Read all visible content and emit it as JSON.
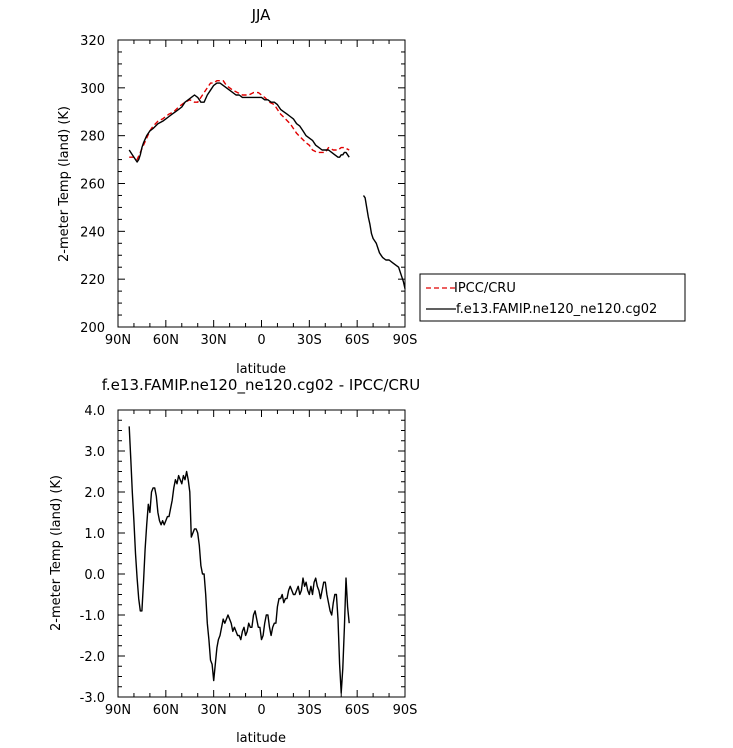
{
  "chart_data": [
    {
      "type": "line",
      "title": "JJA",
      "xlabel": "latitude",
      "ylabel": "2-meter Temp (land) (K)",
      "xlim": [
        90,
        -90
      ],
      "ylim": [
        200,
        320
      ],
      "xticks": [
        90,
        60,
        30,
        0,
        -30,
        -60,
        -90
      ],
      "xtick_labels": [
        "90N",
        "60N",
        "30N",
        "0",
        "30S",
        "60S",
        "90S"
      ],
      "yticks": [
        200,
        220,
        240,
        260,
        280,
        300,
        320
      ],
      "ytick_labels": [
        "200",
        "220",
        "240",
        "260",
        "280",
        "300",
        "320"
      ],
      "legend_position": "right",
      "series": [
        {
          "name": "IPCC/CRU",
          "color": "#e00000",
          "dash": true,
          "x": [
            83,
            80,
            78,
            76,
            74,
            72,
            70,
            68,
            65,
            62,
            60,
            58,
            55,
            52,
            50,
            48,
            45,
            42,
            40,
            38,
            36,
            34,
            32,
            30,
            28,
            26,
            24,
            22,
            20,
            18,
            15,
            12,
            10,
            8,
            5,
            2,
            0,
            -2,
            -5,
            -8,
            -10,
            -12,
            -15,
            -18,
            -20,
            -22,
            -25,
            -28,
            -30,
            -32,
            -35,
            -38,
            -40,
            -42,
            -45,
            -48,
            -50,
            -52,
            -55
          ],
          "y": [
            271,
            271,
            270,
            273,
            276,
            279,
            282,
            284,
            286,
            287,
            288,
            289,
            290,
            292,
            293,
            294,
            295,
            294,
            294,
            296,
            298,
            300,
            302,
            302,
            303,
            303,
            303,
            301,
            300,
            299,
            298,
            297,
            297,
            297,
            298,
            298,
            297,
            296,
            294,
            293,
            291,
            289,
            287,
            285,
            283,
            281,
            279,
            277,
            276,
            274,
            273,
            273,
            273,
            275,
            274,
            274,
            275,
            275,
            274
          ]
        },
        {
          "name": "f.e13.FAMIP.ne120_ne120.cg02",
          "color": "#000000",
          "dash": false,
          "x": [
            83,
            81,
            79,
            78,
            77,
            76,
            75,
            74,
            72,
            70,
            68,
            65,
            62,
            60,
            58,
            56,
            54,
            52,
            50,
            48,
            46,
            44,
            42,
            40,
            38,
            36,
            34,
            32,
            30,
            28,
            26,
            24,
            22,
            20,
            18,
            16,
            14,
            12,
            10,
            8,
            6,
            4,
            2,
            0,
            -2,
            -4,
            -6,
            -8,
            -10,
            -12,
            -14,
            -16,
            -18,
            -20,
            -22,
            -24,
            -26,
            -28,
            -30,
            -32,
            -34,
            -36,
            -38,
            -40,
            -42,
            -44,
            -46,
            -48,
            -49,
            -50,
            -51,
            -52,
            -53,
            -54,
            -55
          ],
          "y": [
            274,
            272,
            270,
            269,
            270,
            272,
            275,
            277,
            280,
            282,
            283,
            285,
            286,
            287,
            288,
            289,
            290,
            291,
            292,
            294,
            295,
            296,
            297,
            296,
            294,
            294,
            297,
            299,
            301,
            302,
            302,
            301,
            300,
            299,
            298,
            297,
            297,
            296,
            296,
            296,
            296,
            296,
            296,
            296,
            295,
            295,
            294,
            294,
            293,
            291,
            290,
            289,
            288,
            287,
            285,
            284,
            282,
            280,
            279,
            278,
            276,
            275,
            274,
            274,
            274,
            273,
            272,
            271,
            271,
            272,
            272,
            273,
            273,
            272,
            271
          ]
        },
        {
          "name": "f.e13.FAMIP.ne120_ne120.cg02",
          "color": "#000000",
          "dash": false,
          "x": [
            -64,
            -65,
            -66,
            -67,
            -68,
            -69,
            -70,
            -71,
            -72,
            -73,
            -74,
            -75,
            -76,
            -78,
            -80,
            -82,
            -84,
            -86,
            -87,
            -88,
            -89,
            -90
          ],
          "y": [
            255,
            254,
            250,
            246,
            243,
            239,
            237,
            236,
            235,
            233,
            231,
            230,
            229,
            228,
            228,
            227,
            226,
            225,
            223,
            221,
            219,
            216
          ]
        }
      ]
    },
    {
      "type": "line",
      "title": "f.e13.FAMIP.ne120_ne120.cg02 - IPCC/CRU",
      "xlabel": "latitude",
      "ylabel": "2-meter Temp (land) (K)",
      "xlim": [
        90,
        -90
      ],
      "ylim": [
        -3,
        4
      ],
      "xticks": [
        90,
        60,
        30,
        0,
        -30,
        -60,
        -90
      ],
      "xtick_labels": [
        "90N",
        "60N",
        "30N",
        "0",
        "30S",
        "60S",
        "90S"
      ],
      "yticks": [
        -3,
        -2,
        -1,
        0,
        1,
        2,
        3,
        4
      ],
      "ytick_labels": [
        "-3.0",
        "-2.0",
        "-1.0",
        "0.0",
        "1.0",
        "2.0",
        "3.0",
        "4.0"
      ],
      "series": [
        {
          "color": "#000000",
          "dash": false,
          "x": [
            83,
            82,
            81,
            80,
            79,
            78,
            77,
            76,
            75,
            74,
            73,
            72,
            71,
            70,
            69,
            68,
            67,
            66,
            65,
            64,
            63,
            62,
            61,
            60,
            59,
            58,
            57,
            56,
            55,
            54,
            53,
            52,
            51,
            50,
            49,
            48,
            47,
            46,
            45,
            44,
            43,
            42,
            41,
            40,
            39,
            38,
            37,
            36,
            35,
            34,
            33,
            32,
            31,
            30,
            29,
            28,
            27,
            26,
            25,
            24,
            23,
            22,
            21,
            20,
            19,
            18,
            17,
            16,
            15,
            14,
            13,
            12,
            11,
            10,
            9,
            8,
            7,
            6,
            5,
            4,
            3,
            2,
            1,
            0,
            -1,
            -2,
            -3,
            -4,
            -5,
            -6,
            -7,
            -8,
            -9,
            -10,
            -11,
            -12,
            -13,
            -14,
            -15,
            -16,
            -17,
            -18,
            -19,
            -20,
            -21,
            -22,
            -23,
            -24,
            -25,
            -26,
            -27,
            -28,
            -29,
            -30,
            -31,
            -32,
            -33,
            -34,
            -35,
            -36,
            -37,
            -38,
            -39,
            -40,
            -41,
            -42,
            -43,
            -44,
            -45,
            -46,
            -47,
            -48,
            -49,
            -50,
            -51,
            -52,
            -53,
            -54,
            -55
          ],
          "y": [
            3.6,
            2.8,
            2.0,
            1.3,
            0.5,
            -0.1,
            -0.6,
            -0.9,
            -0.9,
            -0.2,
            0.6,
            1.2,
            1.7,
            1.5,
            2.0,
            2.1,
            2.1,
            1.9,
            1.5,
            1.3,
            1.2,
            1.3,
            1.2,
            1.3,
            1.4,
            1.4,
            1.6,
            1.8,
            2.1,
            2.3,
            2.2,
            2.4,
            2.3,
            2.2,
            2.4,
            2.3,
            2.5,
            2.3,
            2.0,
            0.9,
            1.0,
            1.1,
            1.1,
            1.0,
            0.7,
            0.2,
            0.0,
            0.0,
            -0.5,
            -1.2,
            -1.6,
            -2.1,
            -2.2,
            -2.6,
            -2.2,
            -1.8,
            -1.6,
            -1.5,
            -1.3,
            -1.1,
            -1.2,
            -1.1,
            -1.0,
            -1.1,
            -1.2,
            -1.4,
            -1.3,
            -1.4,
            -1.5,
            -1.5,
            -1.6,
            -1.4,
            -1.3,
            -1.5,
            -1.4,
            -1.2,
            -1.3,
            -1.3,
            -1.0,
            -0.9,
            -1.1,
            -1.3,
            -1.3,
            -1.6,
            -1.5,
            -1.2,
            -1.0,
            -1.0,
            -1.3,
            -1.5,
            -1.3,
            -1.2,
            -1.2,
            -0.8,
            -0.6,
            -0.6,
            -0.5,
            -0.7,
            -0.6,
            -0.6,
            -0.4,
            -0.3,
            -0.4,
            -0.5,
            -0.5,
            -0.4,
            -0.3,
            -0.5,
            -0.4,
            -0.1,
            -0.3,
            -0.2,
            -0.4,
            -0.5,
            -0.3,
            -0.5,
            -0.2,
            -0.1,
            -0.3,
            -0.4,
            -0.6,
            -0.4,
            -0.2,
            -0.2,
            -0.5,
            -0.7,
            -0.9,
            -1.0,
            -0.7,
            -0.5,
            -0.5,
            -1.1,
            -2.2,
            -2.9,
            -2.3,
            -1.3,
            -0.1,
            -0.8,
            -1.2
          ]
        }
      ]
    }
  ]
}
